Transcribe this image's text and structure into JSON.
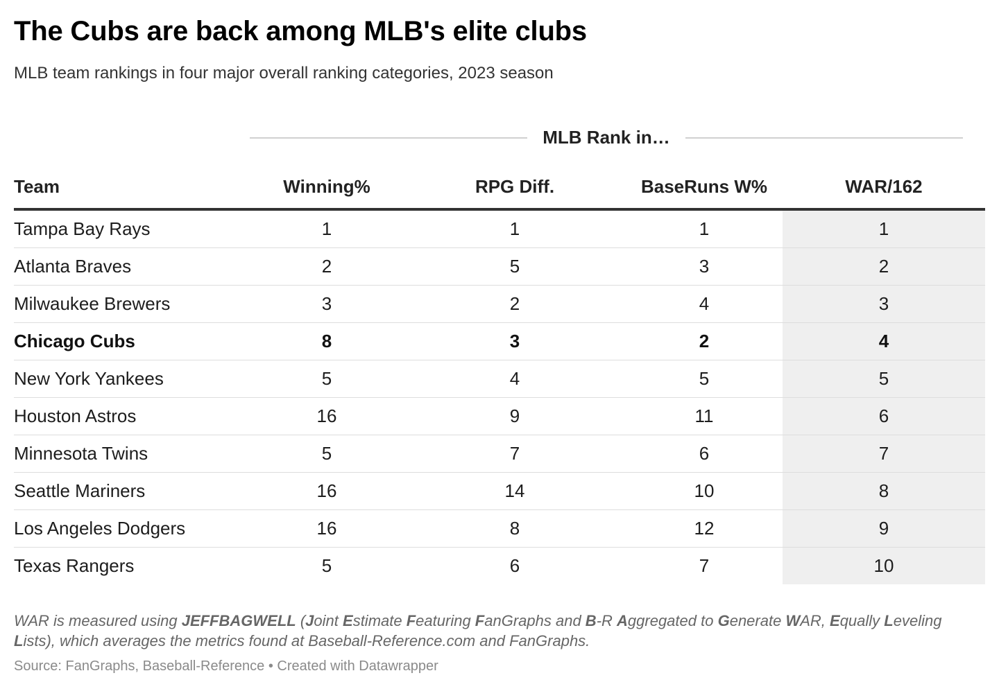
{
  "header": {
    "title": "The Cubs are back among MLB's elite clubs",
    "subtitle": "MLB team rankings in four major overall ranking categories, 2023 season"
  },
  "chart_data": {
    "type": "table",
    "title": "The Cubs are back among MLB's elite clubs",
    "subtitle": "MLB team rankings in four major overall ranking categories, 2023 season",
    "spanner_label": "MLB Rank in…",
    "columns": [
      "Team",
      "Winning%",
      "RPG Diff.",
      "BaseRuns W%",
      "WAR/162"
    ],
    "highlighted_team": "Chicago Cubs",
    "shaded_column": "WAR/162",
    "rows": [
      {
        "team": "Tampa Bay Rays",
        "values": [
          1,
          1,
          1,
          1
        ]
      },
      {
        "team": "Atlanta Braves",
        "values": [
          2,
          5,
          3,
          2
        ]
      },
      {
        "team": "Milwaukee Brewers",
        "values": [
          3,
          2,
          4,
          3
        ]
      },
      {
        "team": "Chicago Cubs",
        "values": [
          8,
          3,
          2,
          4
        ]
      },
      {
        "team": "New York Yankees",
        "values": [
          5,
          4,
          5,
          5
        ]
      },
      {
        "team": "Houston Astros",
        "values": [
          16,
          9,
          11,
          6
        ]
      },
      {
        "team": "Minnesota Twins",
        "values": [
          5,
          7,
          6,
          7
        ]
      },
      {
        "team": "Seattle Mariners",
        "values": [
          16,
          14,
          10,
          8
        ]
      },
      {
        "team": "Los Angeles Dodgers",
        "values": [
          16,
          8,
          12,
          9
        ]
      },
      {
        "team": "Texas Rangers",
        "values": [
          5,
          6,
          7,
          10
        ]
      }
    ]
  },
  "notes": {
    "pre": "WAR is measured using ",
    "acronym": "JEFFBAGWELL",
    "expansion": [
      {
        "text": " (",
        "bold": false
      },
      {
        "text": "J",
        "bold": true
      },
      {
        "text": "oint ",
        "bold": false
      },
      {
        "text": "E",
        "bold": true
      },
      {
        "text": "stimate ",
        "bold": false
      },
      {
        "text": "F",
        "bold": true
      },
      {
        "text": "eaturing ",
        "bold": false
      },
      {
        "text": "F",
        "bold": true
      },
      {
        "text": "anGraphs and ",
        "bold": false
      },
      {
        "text": "B",
        "bold": true
      },
      {
        "text": "-R ",
        "bold": false
      },
      {
        "text": "A",
        "bold": true
      },
      {
        "text": "ggregated to ",
        "bold": false
      },
      {
        "text": "G",
        "bold": true
      },
      {
        "text": "enerate ",
        "bold": false
      },
      {
        "text": "W",
        "bold": true
      },
      {
        "text": "AR, ",
        "bold": false
      },
      {
        "text": "E",
        "bold": true
      },
      {
        "text": "qually ",
        "bold": false
      },
      {
        "text": "L",
        "bold": true
      },
      {
        "text": "eveling ",
        "bold": false
      },
      {
        "text": "L",
        "bold": true
      },
      {
        "text": "ists), which averages the metrics found at Baseball-Reference.com and FanGraphs.",
        "bold": false
      }
    ]
  },
  "footer": {
    "source": "Source: FanGraphs, Baseball-Reference • Created with Datawrapper"
  },
  "colors": {
    "shaded_column_bg": "#efefef",
    "header_rule": "#333333",
    "row_rule": "#dddddd",
    "notes_text": "#666666",
    "source_text": "#8a8a8a"
  }
}
